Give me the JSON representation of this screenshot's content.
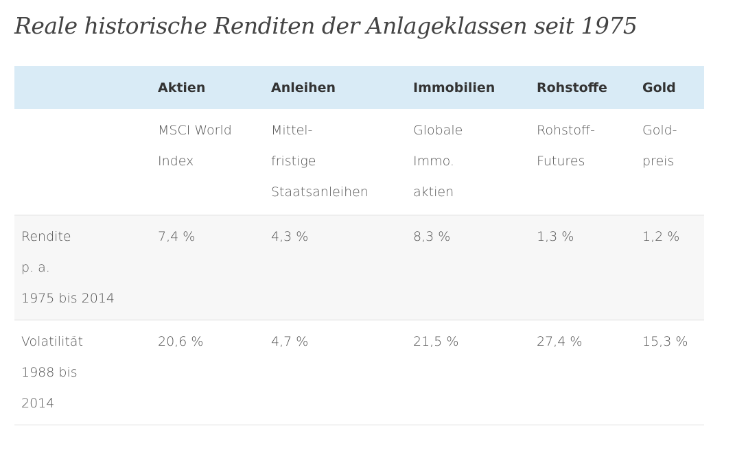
{
  "page": {
    "title": "Reale historische Renditen der Anlageklassen seit 1975"
  },
  "table": {
    "header": {
      "corner": "",
      "columns": [
        "Aktien",
        "Anleihen",
        "Immobilien",
        "Rohstoffe",
        "Gold"
      ]
    },
    "descriptions": [
      [
        "MSCI World",
        "Index"
      ],
      [
        "Mittel-",
        "fristige",
        "Staatsanleihen"
      ],
      [
        "Globale",
        "Immo.",
        "aktien"
      ],
      [
        "Rohstoff-",
        "Futures"
      ],
      [
        "Gold-",
        "preis"
      ]
    ],
    "return_row": {
      "label": [
        "Rendite",
        "p. a.",
        "1975 bis 2014"
      ],
      "values": [
        "7,4 %",
        "4,3 %",
        "8,3 %",
        "1,3 %",
        "1,2 %"
      ]
    },
    "volatility_row": {
      "label": [
        "Volatilität",
        "1988 bis",
        "2014"
      ],
      "values": [
        "20,6 %",
        "4,7 %",
        "21,5 %",
        "27,4 %",
        "15,3 %"
      ]
    }
  },
  "colors": {
    "header_bg": "#d9ebf6",
    "striped_row_bg": "#f7f7f7",
    "row_border": "#dddddd",
    "text": "#555555"
  }
}
